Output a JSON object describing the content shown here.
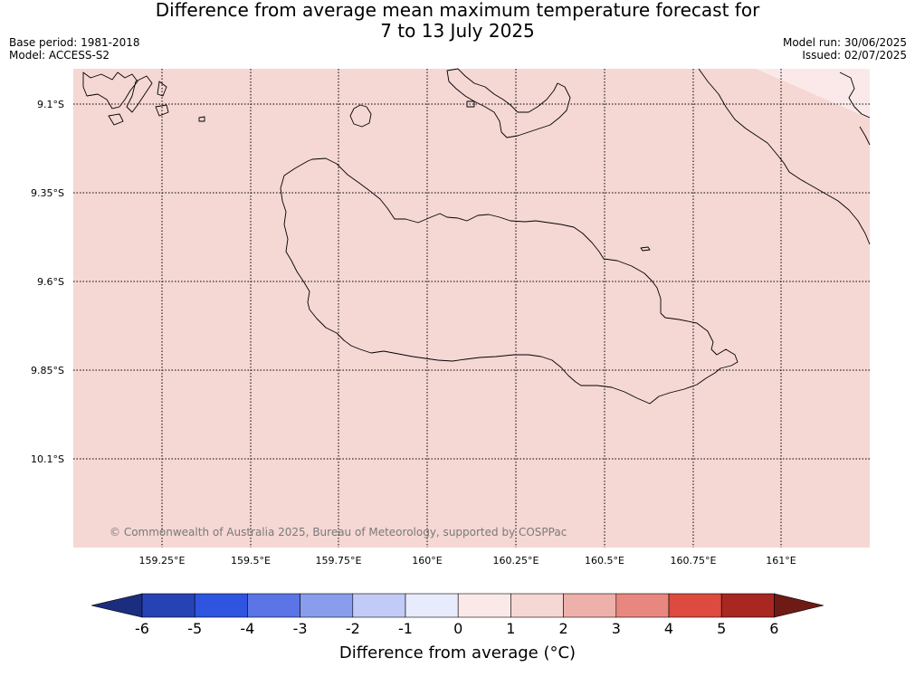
{
  "title_line1": "Difference from average mean maximum temperature forecast for",
  "title_line2": "7 to 13 July 2025",
  "meta_left": {
    "base_period": "Base period: 1981-2018",
    "model": "Model: ACCESS-S2"
  },
  "meta_right": {
    "model_run": "Model run: 30/06/2025",
    "issued": "Issued: 02/07/2025"
  },
  "map": {
    "lat_labels": [
      "9.1°S",
      "9.35°S",
      "9.6°S",
      "9.85°S",
      "10.1°S"
    ],
    "lon_labels": [
      "159.25°E",
      "159.5°E",
      "159.75°E",
      "160°E",
      "160.25°E",
      "160.5°E",
      "160.75°E",
      "161°E"
    ],
    "copyright": "© Commonwealth of Australia 2025, Bureau of Meteorology, supported by COSPPac",
    "fill_color": "#f5d7d4",
    "fill_category": "1 to 2"
  },
  "colorbar": {
    "tick_labels": [
      "-6",
      "-5",
      "-4",
      "-3",
      "-2",
      "-1",
      "0",
      "1",
      "2",
      "3",
      "4",
      "5",
      "6"
    ],
    "colors": [
      "#1b2d7e",
      "#2643b5",
      "#2f55e0",
      "#5b75e6",
      "#8a9cec",
      "#c2cbf5",
      "#e8ebfb",
      "#fbe9e9",
      "#f5d7d4",
      "#eeb0ab",
      "#e8877f",
      "#dd4a40",
      "#a82821",
      "#6e1a15"
    ],
    "title": "Difference from average (°C)"
  }
}
